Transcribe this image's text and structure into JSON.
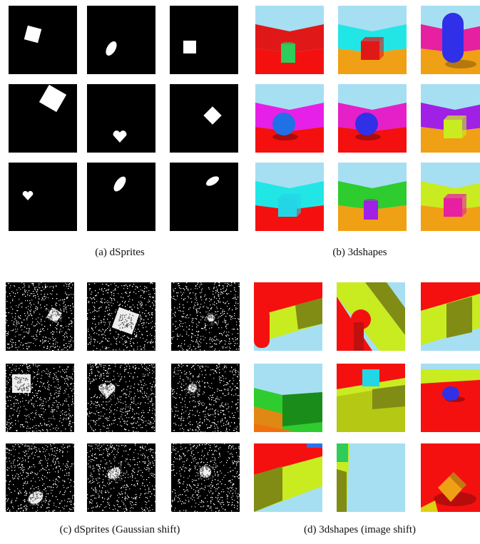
{
  "captions": {
    "a": "(a) dSprites",
    "b": "(b) 3dshapes",
    "c": "(c) dSprites (Gaussian shift)",
    "d": "(d) 3dshapes (image shift)"
  },
  "palette": {
    "sky": "#a6dff2",
    "red": "#f51010",
    "cyan": "#22e6e6",
    "magenta": "#e620c8",
    "yellow_green": "#c8ec20",
    "green": "#2ecc2e",
    "orange": "#f0a014",
    "blue": "#3030e8"
  },
  "panels": {
    "dsprites": [
      {
        "shape": "square"
      },
      {
        "shape": "ellipse"
      },
      {
        "shape": "square"
      },
      {
        "shape": "square"
      },
      {
        "shape": "heart"
      },
      {
        "shape": "square"
      },
      {
        "shape": "heart"
      },
      {
        "shape": "ellipse"
      },
      {
        "shape": "ellipse"
      }
    ],
    "shapes3d": [
      {
        "wall": "#e01818",
        "floor": "#f51010",
        "object": "cylinder",
        "object_color": "#2ecc5a"
      },
      {
        "wall": "#22e6e6",
        "floor": "#f0a014",
        "object": "cube",
        "object_color": "#e01818"
      },
      {
        "wall": "#e620a0",
        "floor": "#f0a014",
        "object": "capsule",
        "object_color": "#3030e8"
      },
      {
        "wall": "#e620e6",
        "floor": "#f51010",
        "object": "sphere",
        "object_color": "#2070e8"
      },
      {
        "wall": "#e620c8",
        "floor": "#f51010",
        "object": "sphere",
        "object_color": "#3030e8"
      },
      {
        "wall": "#a020e6",
        "floor": "#f0a014",
        "object": "cube",
        "object_color": "#c8ec20"
      },
      {
        "wall": "#22e6e6",
        "floor": "#f51010",
        "object": "cube",
        "object_color": "#22d6e6"
      },
      {
        "wall": "#2ecc2e",
        "floor": "#f0a014",
        "object": "cylinder",
        "object_color": "#a020e6"
      },
      {
        "wall": "#c8ec20",
        "floor": "#f0a014",
        "object": "cube",
        "object_color": "#e620a0"
      }
    ],
    "dsprites_noise": [
      {
        "shape": "square"
      },
      {
        "shape": "square"
      },
      {
        "shape": "blob"
      },
      {
        "shape": "square"
      },
      {
        "shape": "heart"
      },
      {
        "shape": "blob"
      },
      {
        "shape": "ellipse"
      },
      {
        "shape": "ellipse"
      },
      {
        "shape": "blob"
      }
    ],
    "shapes3d_shift": [
      {
        "object": "cylinder",
        "object_color": "#f51010"
      },
      {
        "object": "sphere",
        "object_color": "#f51010"
      },
      {
        "object": "none",
        "object_color": "#c8ec20"
      },
      {
        "object": "none",
        "object_color": "#2ecc2e"
      },
      {
        "object": "cube",
        "object_color": "#22d6e6"
      },
      {
        "object": "sphere",
        "object_color": "#3030e8"
      },
      {
        "object": "cube",
        "object_color": "#3070e8"
      },
      {
        "object": "cube",
        "object_color": "#2ecc5a"
      },
      {
        "object": "cylinder",
        "object_color": "#f0a014"
      }
    ]
  }
}
